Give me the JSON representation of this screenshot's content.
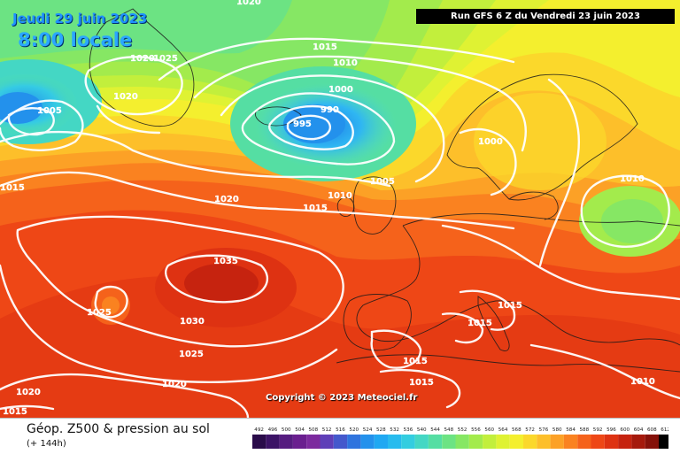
{
  "header": {
    "date_line": "Jeudi 29 juin 2023",
    "time_line": "8:00 locale",
    "run_banner": "Run GFS 6 Z du Vendredi 23 juin 2023"
  },
  "copyright": "Copyright © 2023 Meteociel.fr",
  "legend": {
    "title": "Géop. Z500 & pression au sol",
    "subtitle": "(+ 144h)",
    "scale_values": [
      "492",
      "496",
      "500",
      "504",
      "508",
      "512",
      "516",
      "520",
      "524",
      "528",
      "532",
      "536",
      "540",
      "544",
      "548",
      "552",
      "556",
      "560",
      "564",
      "568",
      "572",
      "576",
      "580",
      "584",
      "588",
      "592",
      "596",
      "600",
      "604",
      "608",
      "612"
    ],
    "scale_colors": [
      "#2a0c4a",
      "#3c1366",
      "#561c80",
      "#6a1f8f",
      "#7c2a9e",
      "#5f3fb8",
      "#4458cc",
      "#2f74de",
      "#2391ec",
      "#1fa8f2",
      "#27bbee",
      "#33cde0",
      "#44d7c4",
      "#55dea3",
      "#6ce383",
      "#86e764",
      "#a3eb4c",
      "#c2ef3c",
      "#dff233",
      "#f4ef2e",
      "#fbd82b",
      "#fdbf2a",
      "#fca126",
      "#fa8220",
      "#f5621b",
      "#ee4716",
      "#de3212",
      "#c6230f",
      "#a5190c",
      "#85110a",
      "#000000"
    ]
  },
  "isobars": [
    {
      "label": "1020"
    },
    {
      "label": "1020"
    },
    {
      "label": "1025"
    },
    {
      "label": "1020"
    },
    {
      "label": "1005"
    },
    {
      "label": "1015"
    },
    {
      "label": "1010"
    },
    {
      "label": "1000"
    },
    {
      "label": "990"
    },
    {
      "label": "995"
    },
    {
      "label": "1000"
    },
    {
      "label": "1005"
    },
    {
      "label": "1010"
    },
    {
      "label": "1015"
    },
    {
      "label": "1015"
    },
    {
      "label": "1020"
    },
    {
      "label": "1035"
    },
    {
      "label": "1025"
    },
    {
      "label": "1030"
    },
    {
      "label": "1025"
    },
    {
      "label": "1020"
    },
    {
      "label": "1020"
    },
    {
      "label": "1015"
    },
    {
      "label": "1010"
    },
    {
      "label": "1015"
    },
    {
      "label": "1015"
    },
    {
      "label": "1015"
    },
    {
      "label": "1015"
    },
    {
      "label": "1010"
    }
  ]
}
